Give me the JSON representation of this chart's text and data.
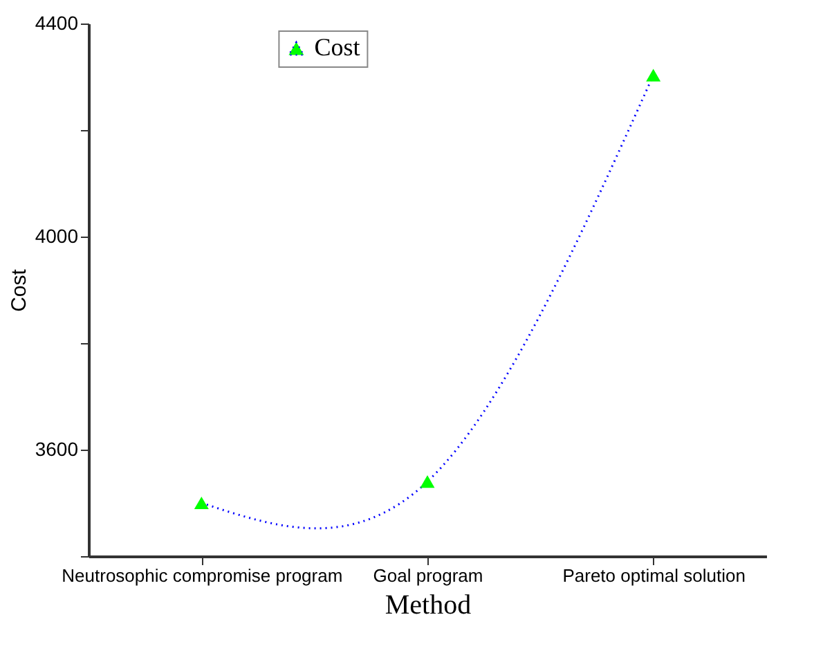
{
  "chart_data": {
    "type": "line",
    "xlabel": "Method",
    "ylabel": "Cost",
    "categories": [
      "Neutrosophic compromise program",
      "Goal program",
      "Pareto optimal solution"
    ],
    "series": [
      {
        "name": "Cost",
        "color": "#0000ff",
        "colors": [
          "#00ff00",
          "#00ff00",
          "#00ff00"
        ],
        "values": [
          3500,
          3540,
          4303
        ]
      }
    ],
    "ylim": [
      3400,
      4400
    ],
    "yticks": [
      {
        "value": 3400,
        "label": null
      },
      3600,
      {
        "value": 3800,
        "label": null
      },
      4000,
      {
        "value": 4200,
        "label": null
      },
      4400
    ],
    "grid": false,
    "legend": "top",
    "marker": "triangle",
    "line_style": "dotted"
  }
}
